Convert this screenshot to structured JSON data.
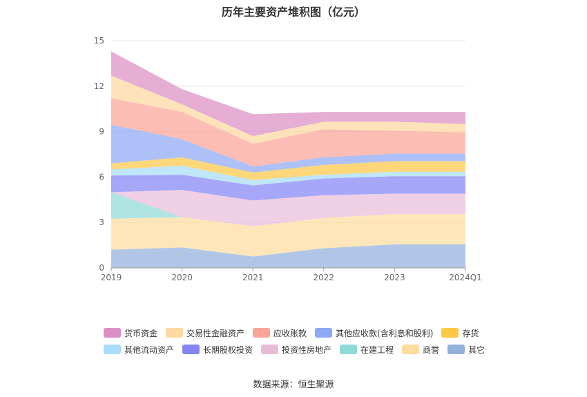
{
  "chart_data": {
    "type": "area",
    "title": "历年主要资产堆积图（亿元）",
    "categories": [
      "2019",
      "2020",
      "2021",
      "2022",
      "2023",
      "2024Q1"
    ],
    "ylim": [
      0,
      15
    ],
    "yticks": [
      0,
      3,
      6,
      9,
      12,
      15
    ],
    "stacked": true,
    "grid": true,
    "legend_position": "bottom",
    "series": [
      {
        "name": "其它",
        "color": "#93b0dc",
        "values": [
          1.2,
          1.35,
          0.75,
          1.3,
          1.55,
          1.55
        ]
      },
      {
        "name": "商誉",
        "color": "#fddc9f",
        "values": [
          2.05,
          2.0,
          2.0,
          2.0,
          2.0,
          2.0
        ]
      },
      {
        "name": "在建工程",
        "color": "#8fd9d6",
        "values": [
          1.75,
          0.0,
          0.0,
          0.0,
          0.0,
          0.0
        ]
      },
      {
        "name": "投资性房地产",
        "color": "#e8bcd9",
        "values": [
          0.0,
          1.8,
          1.7,
          1.5,
          1.35,
          1.35
        ]
      },
      {
        "name": "长期股权投资",
        "color": "#8385f5",
        "values": [
          1.1,
          1.0,
          1.0,
          1.1,
          1.15,
          1.15
        ]
      },
      {
        "name": "其他流动资产",
        "color": "#a8dcf8",
        "values": [
          0.4,
          0.6,
          0.35,
          0.25,
          0.3,
          0.3
        ]
      },
      {
        "name": "存货",
        "color": "#fcc845",
        "values": [
          0.4,
          0.55,
          0.5,
          0.65,
          0.7,
          0.7
        ]
      },
      {
        "name": "其他应收款(含利息和股利)",
        "color": "#8da8f5",
        "values": [
          2.55,
          1.2,
          0.4,
          0.5,
          0.5,
          0.5
        ]
      },
      {
        "name": "应收账款",
        "color": "#fba497",
        "values": [
          1.75,
          1.8,
          1.5,
          1.85,
          1.5,
          1.4
        ]
      },
      {
        "name": "交易性金融资产",
        "color": "#fdd8a0",
        "values": [
          1.5,
          0.5,
          0.5,
          0.5,
          0.6,
          0.55
        ]
      },
      {
        "name": "货币资金",
        "color": "#dc8fc4",
        "values": [
          1.6,
          1.0,
          1.45,
          0.65,
          0.65,
          0.8
        ]
      }
    ]
  },
  "legend": {
    "rows": [
      [
        {
          "label": "货币资金",
          "color": "#dc8fc4"
        },
        {
          "label": "交易性金融资产",
          "color": "#fdd8a0"
        },
        {
          "label": "应收账款",
          "color": "#fba497"
        },
        {
          "label": "其他应收款(含利息和股利)",
          "color": "#8da8f5"
        },
        {
          "label": "存货",
          "color": "#fcc845"
        }
      ],
      [
        {
          "label": "其他流动资产",
          "color": "#a8dcf8"
        },
        {
          "label": "长期股权投资",
          "color": "#8385f5"
        },
        {
          "label": "投资性房地产",
          "color": "#e8bcd9"
        },
        {
          "label": "在建工程",
          "color": "#8fd9d6"
        },
        {
          "label": "商誉",
          "color": "#fddc9f"
        },
        {
          "label": "其它",
          "color": "#93b0dc"
        }
      ]
    ]
  },
  "source": "数据来源：恒生聚源"
}
